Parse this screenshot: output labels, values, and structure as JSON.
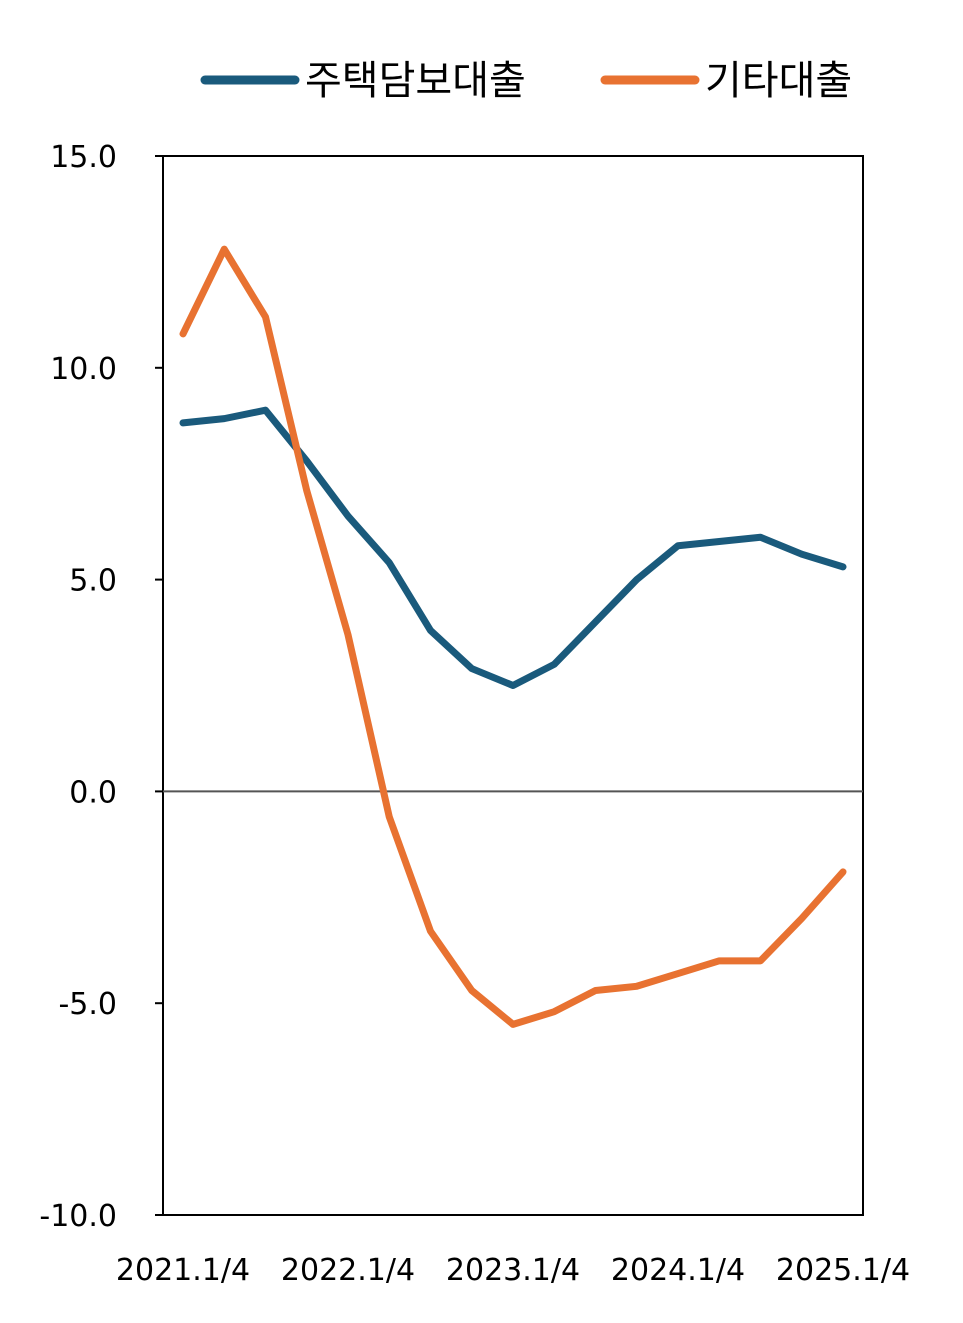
{
  "chart_data": {
    "type": "line",
    "title": "",
    "xlabel": "",
    "ylabel": "",
    "ylim": [
      -10,
      15
    ],
    "yticks": [
      "15.0",
      "10.0",
      "5.0",
      "0.0",
      "-5.0",
      "-10.0"
    ],
    "ytick_values": [
      15,
      10,
      5,
      0,
      -5,
      -10
    ],
    "x": [
      "2021.1/4",
      "2021.2/4",
      "2021.3/4",
      "2021.4/4",
      "2022.1/4",
      "2022.2/4",
      "2022.3/4",
      "2022.4/4",
      "2023.1/4",
      "2023.2/4",
      "2023.3/4",
      "2023.4/4",
      "2024.1/4",
      "2024.2/4",
      "2024.3/4",
      "2024.4/4",
      "2025.1/4"
    ],
    "xtick_labels": [
      "2021.1/4",
      "2022.1/4",
      "2023.1/4",
      "2024.1/4",
      "2025.1/4"
    ],
    "xtick_indices": [
      0,
      4,
      8,
      12,
      16
    ],
    "legend_position": "top",
    "grid": false,
    "zero_line": true,
    "series": [
      {
        "name": "주택담보대출",
        "color": "#1a5a7c",
        "values": [
          8.7,
          8.8,
          9.0,
          7.8,
          6.5,
          5.4,
          3.8,
          2.9,
          2.5,
          3.0,
          4.0,
          5.0,
          5.8,
          5.9,
          6.0,
          5.6,
          5.3
        ]
      },
      {
        "name": "기타대출",
        "color": "#e87231",
        "values": [
          10.8,
          12.8,
          11.2,
          7.1,
          3.7,
          -0.6,
          -3.3,
          -4.7,
          -5.5,
          -5.2,
          -4.7,
          -4.6,
          -4.3,
          -4.0,
          -4.0,
          -3.0,
          -1.9
        ]
      }
    ]
  }
}
